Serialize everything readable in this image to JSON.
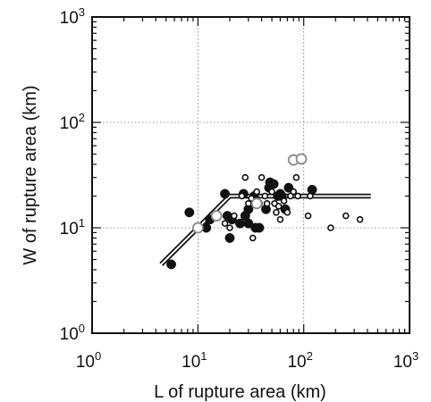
{
  "chart_data": {
    "type": "scatter",
    "title": "",
    "xlabel": "L of rupture area (km)",
    "ylabel": "W of rupture area (km)",
    "xscale": "log",
    "yscale": "log",
    "xlim": [
      1,
      1000
    ],
    "ylim": [
      1,
      1000
    ],
    "grid": "dotted at decades",
    "x_ticks": [
      {
        "base": "10",
        "exp": "0",
        "value": 1
      },
      {
        "base": "10",
        "exp": "1",
        "value": 10
      },
      {
        "base": "10",
        "exp": "2",
        "value": 100
      },
      {
        "base": "10",
        "exp": "3",
        "value": 1000
      }
    ],
    "y_ticks": [
      {
        "base": "10",
        "exp": "0",
        "value": 1
      },
      {
        "base": "10",
        "exp": "1",
        "value": 10
      },
      {
        "base": "10",
        "exp": "2",
        "value": 100
      },
      {
        "base": "10",
        "exp": "3",
        "value": 1000
      }
    ],
    "series": [
      {
        "marker": "filled-circle-large",
        "color": "#111111",
        "points": [
          [
            5.6,
            4.5
          ],
          [
            8.3,
            14
          ],
          [
            12,
            10
          ],
          [
            13,
            12
          ],
          [
            18,
            21
          ],
          [
            19,
            13
          ],
          [
            20,
            8
          ],
          [
            21,
            12
          ],
          [
            25,
            11
          ],
          [
            27,
            21
          ],
          [
            28,
            13
          ],
          [
            30,
            11
          ],
          [
            30,
            15
          ],
          [
            34,
            20
          ],
          [
            35,
            10
          ],
          [
            37,
            17
          ],
          [
            38,
            10
          ],
          [
            44,
            15
          ],
          [
            47,
            24
          ],
          [
            48,
            27
          ],
          [
            52,
            26
          ],
          [
            57,
            20
          ],
          [
            60,
            21
          ],
          [
            62,
            20
          ],
          [
            67,
            15
          ],
          [
            72,
            24
          ],
          [
            120,
            23
          ]
        ]
      },
      {
        "marker": "open-circle-small",
        "color": "#111111",
        "points": [
          [
            18,
            11
          ],
          [
            20,
            10
          ],
          [
            22,
            13
          ],
          [
            26,
            20
          ],
          [
            28,
            30
          ],
          [
            30,
            17
          ],
          [
            32,
            19
          ],
          [
            33,
            8
          ],
          [
            36,
            22
          ],
          [
            40,
            30
          ],
          [
            43,
            20
          ],
          [
            45,
            17
          ],
          [
            50,
            22
          ],
          [
            53,
            17
          ],
          [
            55,
            14
          ],
          [
            58,
            16
          ],
          [
            60,
            12
          ],
          [
            65,
            18
          ],
          [
            70,
            14
          ],
          [
            75,
            20
          ],
          [
            80,
            22
          ],
          [
            85,
            30
          ],
          [
            88,
            20
          ],
          [
            110,
            13
          ],
          [
            115,
            20
          ],
          [
            180,
            10
          ],
          [
            250,
            13
          ],
          [
            340,
            12
          ]
        ]
      },
      {
        "marker": "open-circle-gray",
        "color": "#8a8a8a",
        "points": [
          [
            10,
            10
          ],
          [
            15,
            13
          ],
          [
            36,
            17
          ],
          [
            80,
            44
          ],
          [
            95,
            45
          ]
        ]
      }
    ],
    "lines": [
      {
        "style": "double",
        "points": [
          [
            4.5,
            4.5
          ],
          [
            20,
            20
          ],
          [
            430,
            20
          ]
        ]
      }
    ]
  }
}
